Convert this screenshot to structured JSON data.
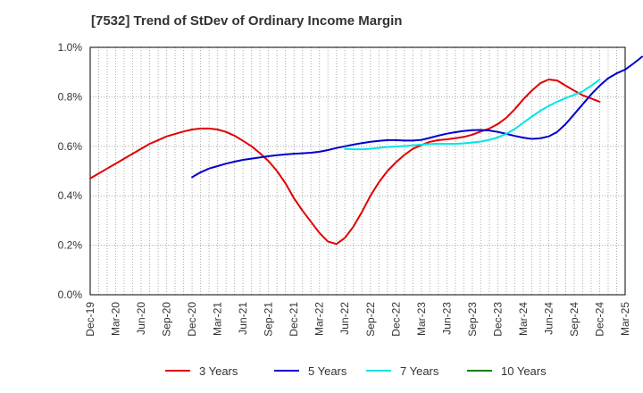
{
  "chart_data": {
    "type": "line",
    "title": "[7532]  Trend of StDev of Ordinary Income Margin",
    "xlabel": "",
    "ylabel": "",
    "x_ticks": [
      "Dec-19",
      "Mar-20",
      "Jun-20",
      "Sep-20",
      "Dec-20",
      "Mar-21",
      "Jun-21",
      "Sep-21",
      "Dec-21",
      "Mar-22",
      "Jun-22",
      "Sep-22",
      "Dec-22",
      "Mar-23",
      "Jun-23",
      "Sep-23",
      "Dec-23",
      "Mar-24",
      "Jun-24",
      "Sep-24",
      "Dec-24",
      "Mar-25"
    ],
    "y_ticks": [
      "0.0%",
      "0.2%",
      "0.4%",
      "0.6%",
      "0.8%",
      "1.0%"
    ],
    "ylim": [
      0,
      1.0
    ],
    "y_unit": "%",
    "grid": true,
    "legend_position": "bottom",
    "series": [
      {
        "name": "3 Years",
        "color": "#e00000",
        "points": [
          [
            "Dec-19",
            0.47
          ],
          [
            "Jan-20",
            0.49
          ],
          [
            "Feb-20",
            0.51
          ],
          [
            "Mar-20",
            0.53
          ],
          [
            "Apr-20",
            0.55
          ],
          [
            "May-20",
            0.57
          ],
          [
            "Jun-20",
            0.59
          ],
          [
            "Jul-20",
            0.61
          ],
          [
            "Aug-20",
            0.625
          ],
          [
            "Sep-20",
            0.64
          ],
          [
            "Oct-20",
            0.65
          ],
          [
            "Nov-20",
            0.66
          ],
          [
            "Dec-20",
            0.668
          ],
          [
            "Jan-21",
            0.672
          ],
          [
            "Feb-21",
            0.672
          ],
          [
            "Mar-21",
            0.668
          ],
          [
            "Apr-21",
            0.658
          ],
          [
            "May-21",
            0.643
          ],
          [
            "Jun-21",
            0.622
          ],
          [
            "Jul-21",
            0.6
          ],
          [
            "Aug-21",
            0.572
          ],
          [
            "Sep-21",
            0.54
          ],
          [
            "Oct-21",
            0.5
          ],
          [
            "Nov-21",
            0.45
          ],
          [
            "Dec-21",
            0.39
          ],
          [
            "Jan-22",
            0.34
          ],
          [
            "Feb-22",
            0.295
          ],
          [
            "Mar-22",
            0.25
          ],
          [
            "Apr-22",
            0.215
          ],
          [
            "May-22",
            0.205
          ],
          [
            "Jun-22",
            0.23
          ],
          [
            "Jul-22",
            0.275
          ],
          [
            "Aug-22",
            0.335
          ],
          [
            "Sep-22",
            0.4
          ],
          [
            "Oct-22",
            0.455
          ],
          [
            "Nov-22",
            0.5
          ],
          [
            "Dec-22",
            0.535
          ],
          [
            "Jan-23",
            0.565
          ],
          [
            "Feb-23",
            0.59
          ],
          [
            "Mar-23",
            0.605
          ],
          [
            "Apr-23",
            0.618
          ],
          [
            "May-23",
            0.625
          ],
          [
            "Jun-23",
            0.628
          ],
          [
            "Jul-23",
            0.633
          ],
          [
            "Aug-23",
            0.638
          ],
          [
            "Sep-23",
            0.647
          ],
          [
            "Oct-23",
            0.66
          ],
          [
            "Nov-23",
            0.672
          ],
          [
            "Dec-23",
            0.69
          ],
          [
            "Jan-24",
            0.715
          ],
          [
            "Feb-24",
            0.75
          ],
          [
            "Mar-24",
            0.79
          ],
          [
            "Apr-24",
            0.825
          ],
          [
            "May-24",
            0.855
          ],
          [
            "Jun-24",
            0.87
          ],
          [
            "Jul-24",
            0.866
          ],
          [
            "Aug-24",
            0.845
          ],
          [
            "Sep-24",
            0.825
          ],
          [
            "Oct-24",
            0.806
          ],
          [
            "Nov-24",
            0.793
          ],
          [
            "Dec-24",
            0.78
          ]
        ]
      },
      {
        "name": "5 Years",
        "color": "#0000cc",
        "points": [
          [
            "Dec-20",
            0.475
          ],
          [
            "Jan-21",
            0.495
          ],
          [
            "Feb-21",
            0.51
          ],
          [
            "Mar-21",
            0.52
          ],
          [
            "Apr-21",
            0.53
          ],
          [
            "May-21",
            0.538
          ],
          [
            "Jun-21",
            0.545
          ],
          [
            "Jul-21",
            0.55
          ],
          [
            "Aug-21",
            0.555
          ],
          [
            "Sep-21",
            0.56
          ],
          [
            "Oct-21",
            0.564
          ],
          [
            "Nov-21",
            0.567
          ],
          [
            "Dec-21",
            0.57
          ],
          [
            "Jan-22",
            0.572
          ],
          [
            "Feb-22",
            0.574
          ],
          [
            "Mar-22",
            0.578
          ],
          [
            "Apr-22",
            0.585
          ],
          [
            "May-22",
            0.593
          ],
          [
            "Jun-22",
            0.6
          ],
          [
            "Jul-22",
            0.607
          ],
          [
            "Aug-22",
            0.613
          ],
          [
            "Sep-22",
            0.618
          ],
          [
            "Oct-22",
            0.622
          ],
          [
            "Nov-22",
            0.625
          ],
          [
            "Dec-22",
            0.625
          ],
          [
            "Jan-23",
            0.623
          ],
          [
            "Feb-23",
            0.623
          ],
          [
            "Mar-23",
            0.626
          ],
          [
            "Apr-23",
            0.634
          ],
          [
            "May-23",
            0.643
          ],
          [
            "Jun-23",
            0.651
          ],
          [
            "Jul-23",
            0.657
          ],
          [
            "Aug-23",
            0.662
          ],
          [
            "Sep-23",
            0.665
          ],
          [
            "Oct-23",
            0.666
          ],
          [
            "Nov-23",
            0.664
          ],
          [
            "Dec-23",
            0.658
          ],
          [
            "Jan-24",
            0.65
          ],
          [
            "Feb-24",
            0.642
          ],
          [
            "Mar-24",
            0.635
          ],
          [
            "Apr-24",
            0.63
          ],
          [
            "May-24",
            0.632
          ],
          [
            "Jun-24",
            0.64
          ],
          [
            "Jul-24",
            0.658
          ],
          [
            "Aug-24",
            0.69
          ],
          [
            "Sep-24",
            0.73
          ],
          [
            "Oct-24",
            0.77
          ],
          [
            "Nov-24",
            0.81
          ],
          [
            "Dec-24",
            0.845
          ],
          [
            "Jan-25",
            0.875
          ],
          [
            "Feb-25",
            0.895
          ],
          [
            "Mar-25",
            0.91
          ],
          [
            "Apr-25",
            0.935
          ],
          [
            "May-25",
            0.962
          ]
        ]
      },
      {
        "name": "7 Years",
        "color": "#00e5e5",
        "points": [
          [
            "Jun-22",
            0.59
          ],
          [
            "Jul-22",
            0.588
          ],
          [
            "Aug-22",
            0.588
          ],
          [
            "Sep-22",
            0.59
          ],
          [
            "Oct-22",
            0.594
          ],
          [
            "Nov-22",
            0.597
          ],
          [
            "Dec-22",
            0.599
          ],
          [
            "Jan-23",
            0.601
          ],
          [
            "Feb-23",
            0.604
          ],
          [
            "Mar-23",
            0.607
          ],
          [
            "Apr-23",
            0.609
          ],
          [
            "May-23",
            0.61
          ],
          [
            "Jun-23",
            0.61
          ],
          [
            "Jul-23",
            0.61
          ],
          [
            "Aug-23",
            0.612
          ],
          [
            "Sep-23",
            0.615
          ],
          [
            "Oct-23",
            0.619
          ],
          [
            "Nov-23",
            0.626
          ],
          [
            "Dec-23",
            0.636
          ],
          [
            "Jan-24",
            0.65
          ],
          [
            "Feb-24",
            0.67
          ],
          [
            "Mar-24",
            0.695
          ],
          [
            "Apr-24",
            0.72
          ],
          [
            "May-24",
            0.743
          ],
          [
            "Jun-24",
            0.763
          ],
          [
            "Jul-24",
            0.78
          ],
          [
            "Aug-24",
            0.795
          ],
          [
            "Sep-24",
            0.808
          ],
          [
            "Oct-24",
            0.822
          ],
          [
            "Nov-24",
            0.845
          ],
          [
            "Dec-24",
            0.87
          ]
        ]
      },
      {
        "name": "10 Years",
        "color": "#008000",
        "points": []
      }
    ]
  }
}
